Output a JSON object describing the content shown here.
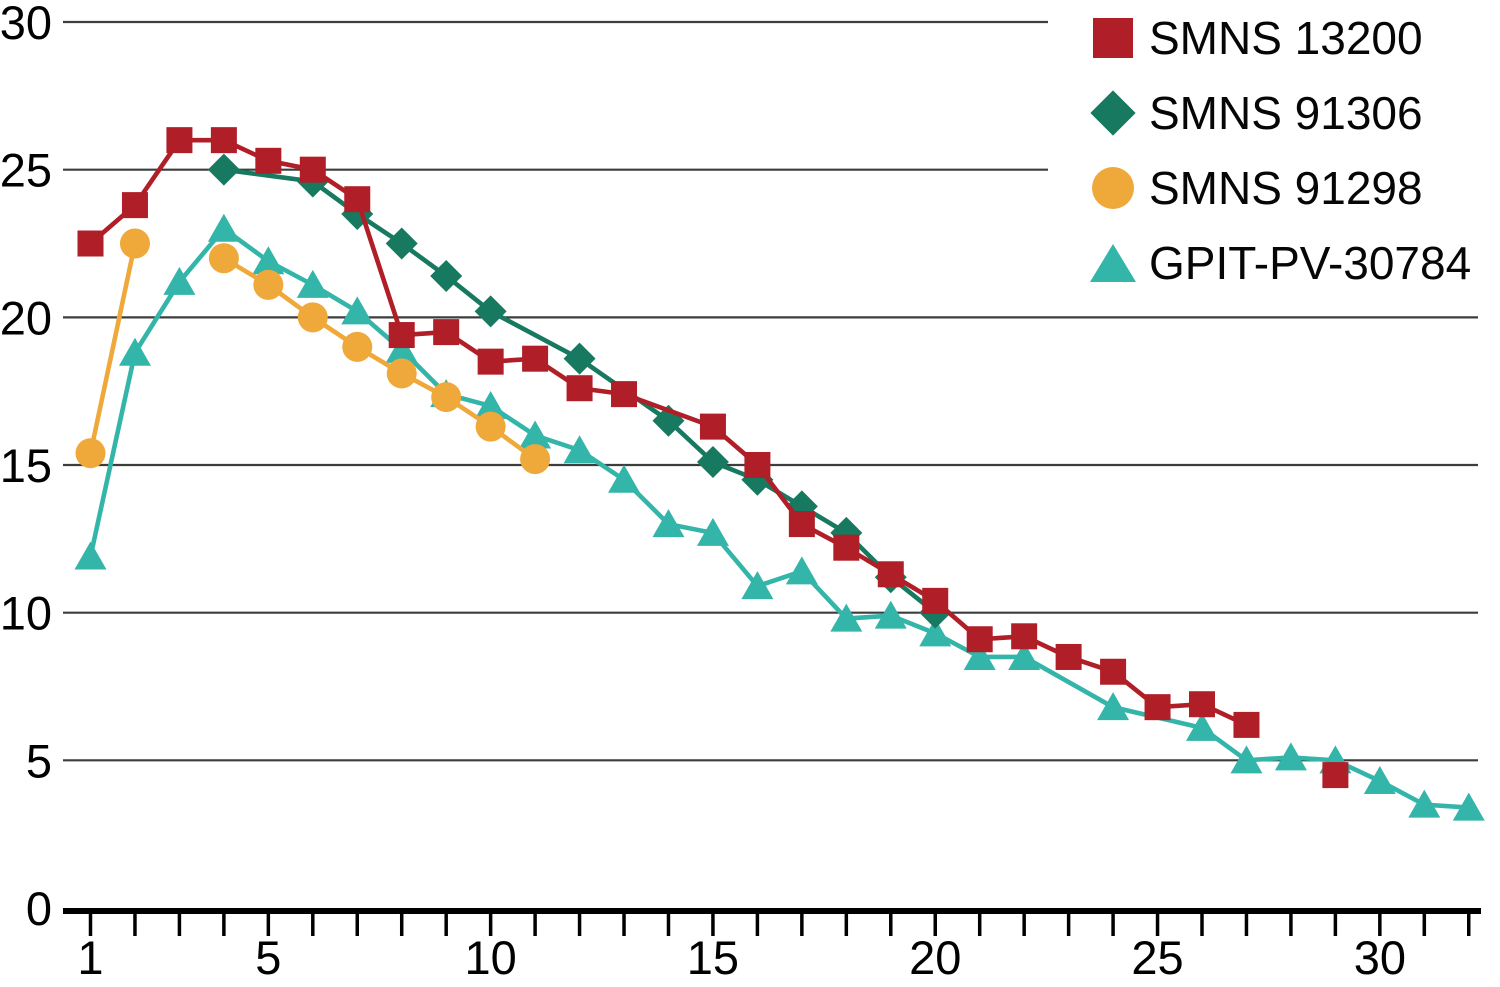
{
  "chart_data": {
    "type": "line",
    "title": "",
    "xlabel": "",
    "ylabel": "",
    "x_range": [
      1,
      32
    ],
    "ylim": [
      0,
      30
    ],
    "y_tick_labels": [
      0,
      5,
      10,
      15,
      20,
      25,
      30
    ],
    "y_gridline_values": [
      5,
      10,
      15,
      20,
      25,
      30
    ],
    "x_tick_labels": [
      1,
      5,
      10,
      15,
      20,
      25,
      30
    ],
    "x_minor_tick_every": 1,
    "grid": "horizontal",
    "legend_position": "top-right",
    "axis_color": "#000000",
    "gridline_color": "#3d3d3d",
    "series": [
      {
        "name": "SMNS 13200",
        "marker": "square",
        "color": "#b01e28",
        "segments": [
          [
            [
              1,
              22.5
            ],
            [
              2,
              23.8
            ],
            [
              3,
              26.0
            ],
            [
              4,
              26.0
            ],
            [
              5,
              25.3
            ],
            [
              6,
              25.0
            ],
            [
              7,
              24.0
            ],
            [
              8,
              19.4
            ],
            [
              9,
              19.5
            ],
            [
              10,
              18.5
            ],
            [
              11,
              18.6
            ],
            [
              12,
              17.6
            ],
            [
              13,
              17.4
            ],
            [
              15,
              16.3
            ],
            [
              16,
              15.0
            ],
            [
              17,
              13.0
            ],
            [
              18,
              12.2
            ],
            [
              19,
              11.3
            ],
            [
              20,
              10.4
            ],
            [
              21,
              9.1
            ],
            [
              22,
              9.2
            ],
            [
              23,
              8.5
            ],
            [
              24,
              8.0
            ],
            [
              25,
              6.8
            ],
            [
              26,
              6.9
            ],
            [
              27,
              6.2
            ]
          ]
        ],
        "isolated_points": [
          [
            29,
            4.5
          ]
        ]
      },
      {
        "name": "SMNS 91306",
        "marker": "diamond",
        "color": "#17795f",
        "segments": [
          [
            [
              4,
              25.0
            ],
            [
              6,
              24.6
            ],
            [
              7,
              23.5
            ],
            [
              8,
              22.5
            ],
            [
              9,
              21.4
            ],
            [
              10,
              20.2
            ],
            [
              12,
              18.6
            ],
            [
              14,
              16.5
            ],
            [
              15,
              15.1
            ],
            [
              16,
              14.5
            ],
            [
              17,
              13.6
            ],
            [
              18,
              12.7
            ],
            [
              19,
              11.2
            ],
            [
              20,
              10.0
            ]
          ]
        ],
        "isolated_points": []
      },
      {
        "name": "SMNS 91298",
        "marker": "circle",
        "color": "#efa83a",
        "segments": [
          [
            [
              1,
              15.4
            ],
            [
              2,
              22.5
            ]
          ],
          [
            [
              4,
              22.0
            ],
            [
              5,
              21.1
            ],
            [
              6,
              20.0
            ],
            [
              7,
              19.0
            ],
            [
              8,
              18.1
            ],
            [
              9,
              17.3
            ],
            [
              10,
              16.3
            ],
            [
              11,
              15.2
            ]
          ]
        ],
        "isolated_points": []
      },
      {
        "name": "GPIT-PV-30784",
        "marker": "triangle",
        "color": "#34b5aa",
        "segments": [
          [
            [
              1,
              11.9
            ],
            [
              2,
              18.8
            ],
            [
              3,
              21.2
            ],
            [
              4,
              23.0
            ],
            [
              5,
              21.9
            ],
            [
              6,
              21.1
            ],
            [
              7,
              20.2
            ],
            [
              8,
              18.9
            ],
            [
              9,
              17.4
            ],
            [
              10,
              17.0
            ],
            [
              11,
              16.0
            ],
            [
              12,
              15.5
            ],
            [
              13,
              14.5
            ],
            [
              14,
              13.0
            ],
            [
              15,
              12.7
            ],
            [
              16,
              10.9
            ],
            [
              17,
              11.4
            ],
            [
              18,
              9.8
            ],
            [
              19,
              9.9
            ],
            [
              20,
              9.3
            ],
            [
              21,
              8.5
            ],
            [
              22,
              8.5
            ],
            [
              24,
              6.8
            ],
            [
              26,
              6.1
            ],
            [
              27,
              5.0
            ],
            [
              28,
              5.1
            ],
            [
              29,
              5.0
            ],
            [
              30,
              4.3
            ],
            [
              31,
              3.5
            ],
            [
              32,
              3.4
            ]
          ]
        ],
        "isolated_points": []
      }
    ]
  },
  "legend": {
    "items": [
      {
        "label": "SMNS 13200"
      },
      {
        "label": "SMNS 91306"
      },
      {
        "label": "SMNS 91298"
      },
      {
        "label": "GPIT-PV-30784"
      }
    ]
  }
}
